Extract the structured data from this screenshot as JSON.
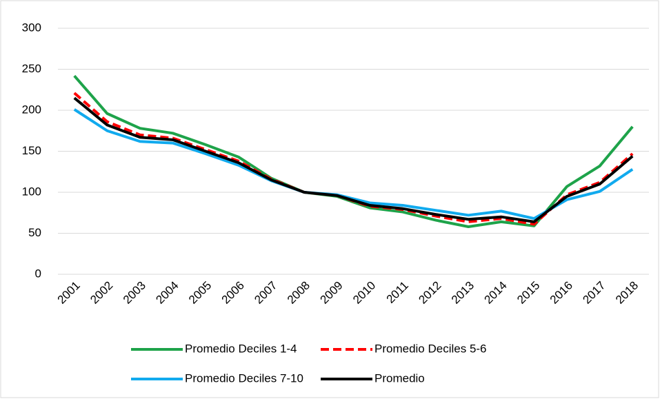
{
  "chart_data": {
    "type": "line",
    "categories": [
      "2001",
      "2002",
      "2003",
      "2004",
      "2005",
      "2006",
      "2007",
      "2008",
      "2009",
      "2010",
      "2011",
      "2012",
      "2013",
      "2014",
      "2015",
      "2016",
      "2017",
      "2018"
    ],
    "series": [
      {
        "name": "Promedio Deciles 1-4",
        "color": "#1ea34a",
        "dashed": false,
        "values": [
          242,
          196,
          178,
          172,
          158,
          143,
          117,
          100,
          95,
          81,
          76,
          66,
          58,
          64,
          59,
          107,
          132,
          180
        ]
      },
      {
        "name": "Promedio Deciles 5-6",
        "color": "#ff0000",
        "dashed": true,
        "values": [
          221,
          186,
          170,
          166,
          152,
          138,
          116,
          100,
          96,
          83,
          79,
          71,
          64,
          68,
          61,
          97,
          112,
          147
        ]
      },
      {
        "name": "Promedio Deciles 7-10",
        "color": "#11aaee",
        "dashed": false,
        "values": [
          201,
          175,
          162,
          160,
          147,
          133,
          114,
          100,
          97,
          87,
          84,
          78,
          72,
          77,
          68,
          91,
          101,
          128
        ]
      },
      {
        "name": "Promedio",
        "color": "#000000",
        "dashed": false,
        "values": [
          215,
          182,
          167,
          164,
          150,
          136,
          115,
          100,
          96,
          84,
          80,
          73,
          67,
          70,
          64,
          95,
          110,
          144
        ]
      }
    ],
    "ylim": [
      0,
      300
    ],
    "yticks": [
      0,
      50,
      100,
      150,
      200,
      250,
      300
    ],
    "grid": true,
    "legend": "bottom"
  }
}
